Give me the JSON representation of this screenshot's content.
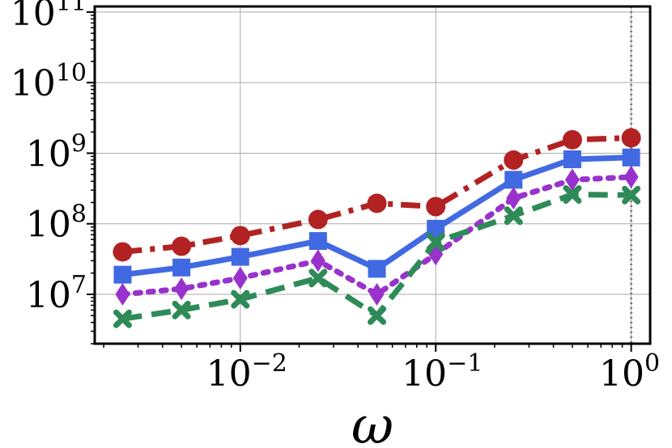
{
  "chart_data": {
    "type": "line",
    "title": "",
    "xlabel": "ω",
    "ylabel": "",
    "x_scale": "log",
    "y_scale": "log",
    "xlim": [
      0.0018,
      1.25
    ],
    "ylim": [
      2000000,
      120000000000
    ],
    "grid": true,
    "legend": "none",
    "reference_line": {
      "x": 1.0,
      "style": "dotted",
      "color": "#808080"
    },
    "x_ticks": [
      {
        "value": 0.01,
        "base": "10",
        "exp": "−2"
      },
      {
        "value": 0.1,
        "base": "10",
        "exp": "−1"
      },
      {
        "value": 1,
        "base": "10",
        "exp": "0"
      }
    ],
    "y_ticks": [
      {
        "value": 10000000,
        "base": "10",
        "exp": "7"
      },
      {
        "value": 100000000,
        "base": "10",
        "exp": "8"
      },
      {
        "value": 1000000000,
        "base": "10",
        "exp": "9"
      },
      {
        "value": 10000000000,
        "base": "10",
        "exp": "10"
      },
      {
        "value": 100000000000,
        "base": "10",
        "exp": "11"
      }
    ],
    "x": [
      0.0025,
      0.005,
      0.01,
      0.025,
      0.05,
      0.1,
      0.25,
      0.5,
      1.0
    ],
    "series": [
      {
        "color": "#b22222",
        "marker": "circle",
        "dash": "dashdot",
        "values": [
          40000000,
          48000000,
          68000000,
          115000000,
          195000000,
          175000000,
          800000000,
          1550000000,
          1650000000
        ]
      },
      {
        "color": "#4169e1",
        "marker": "square",
        "dash": "solid",
        "values": [
          19000000,
          24000000,
          34000000,
          57000000,
          23000000,
          85000000,
          420000000,
          820000000,
          870000000
        ]
      },
      {
        "color": "#9932cc",
        "marker": "diamond",
        "dash": "dotted",
        "values": [
          10000000,
          12000000,
          17000000,
          30000000,
          10000000,
          37000000,
          230000000,
          420000000,
          460000000
        ]
      },
      {
        "color": "#2e8b57",
        "marker": "x",
        "dash": "dashed",
        "values": [
          4500000,
          6000000,
          8500000,
          17000000,
          5000000,
          55000000,
          130000000,
          260000000,
          255000000
        ]
      }
    ]
  }
}
